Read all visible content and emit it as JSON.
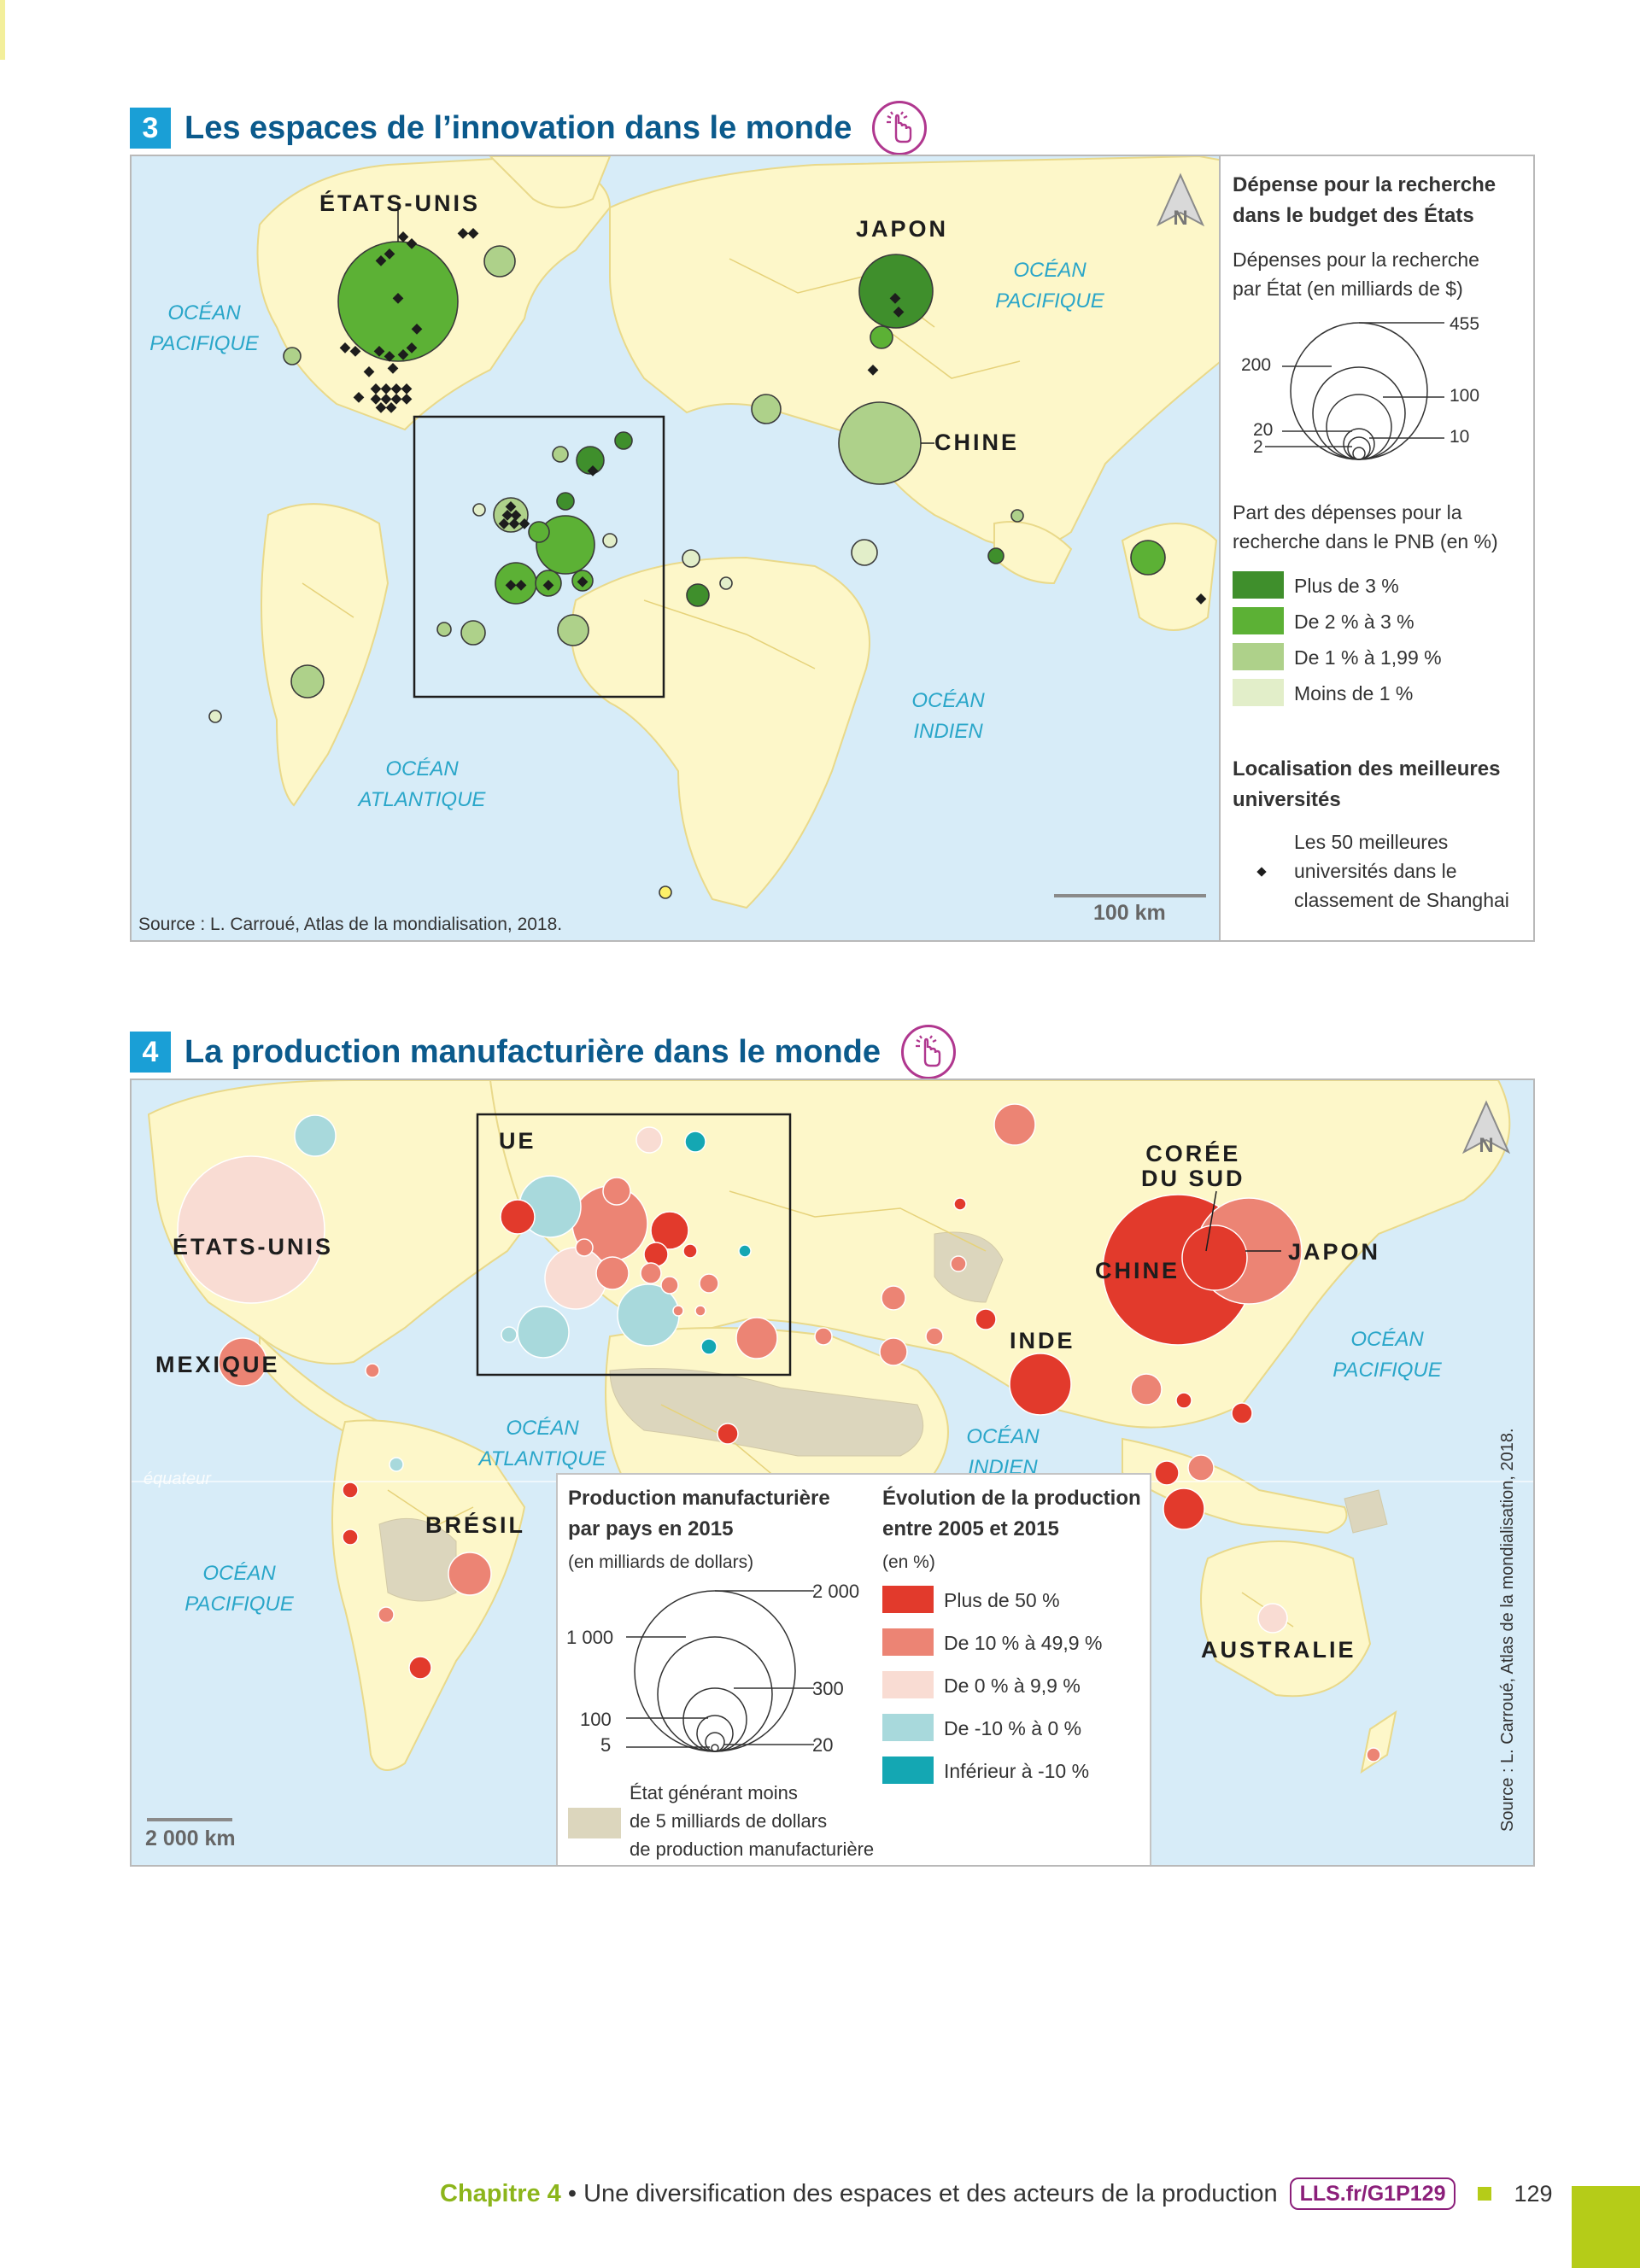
{
  "map3": {
    "number": "3",
    "title": "Les espaces de l’innovation dans le monde",
    "labels": {
      "usa": "ÉTATS-UNIS",
      "japan": "JAPON",
      "china": "CHINE"
    },
    "oceans": {
      "pacific_w": "OCÉAN\nPACIFIQUE",
      "pacific_e": "OCÉAN\nPACIFIQUE",
      "atlantic": "OCÉAN\nATLANTIQUE",
      "indian": "OCÉAN\nINDIEN"
    },
    "north": "N",
    "scale": "100 km",
    "source": "Source : L. Carroué, Atlas de la mondialisation, 2018.",
    "legend": {
      "heading1": "Dépense pour la recherche\ndans le budget des États",
      "subheading1": "Dépenses pour la recherche\npar État (en milliards de $)",
      "circle_values": [
        "455",
        "200",
        "100",
        "20",
        "10",
        "2"
      ],
      "subheading2": "Part des dépenses pour la\nrecherche dans le PNB (en %)",
      "classes": [
        {
          "label": "Plus de 3 %",
          "color": "#3f8f2c"
        },
        {
          "label": "De 2 % à 3 %",
          "color": "#5cb135"
        },
        {
          "label": "De 1 % à 1,99 %",
          "color": "#aed18a"
        },
        {
          "label": "Moins de 1 %",
          "color": "#e2eec9"
        }
      ],
      "heading2": "Localisation des meilleures\nuniversités",
      "universities_label": "Les 50 meilleures\nuniversités dans le\nclassement de Shanghai"
    }
  },
  "map4": {
    "number": "4",
    "title": "La production manufacturière dans le monde",
    "labels": {
      "ue": "UE",
      "usa": "ÉTATS-UNIS",
      "mexico": "MEXIQUE",
      "korea": "CORÉE\nDU SUD",
      "china": "CHINE",
      "japan": "JAPON",
      "india": "INDE",
      "brazil": "BRÉSIL",
      "australia": "AUSTRALIE"
    },
    "oceans": {
      "atlantic": "OCÉAN\nATLANTIQUE",
      "indian": "OCÉAN\nINDIEN",
      "pacific_e": "OCÉAN\nPACIFIQUE",
      "pacific_w": "OCÉAN\nPACIFIQUE"
    },
    "equator": "équateur",
    "north": "N",
    "scale": "2 000 km",
    "source": "Source : L. Carroué, Atlas de la mondialisation, 2018.",
    "legend": {
      "heading1": "Production manufacturière\npar pays en 2015",
      "sub1": "(en milliards de dollars)",
      "circle_values": [
        "2 000",
        "1 000",
        "300",
        "100",
        "5",
        "20"
      ],
      "heading2": "Évolution de la production\nentre 2005 et 2015",
      "sub2": "(en %)",
      "classes": [
        {
          "label": "Plus de 50 %",
          "color": "#e23a2c"
        },
        {
          "label": "De 10 % à 49,9 %",
          "color": "#ec8474"
        },
        {
          "label": "De 0 % à 9,9 %",
          "color": "#f9dcd3"
        },
        {
          "label": "De -10 % à 0 %",
          "color": "#a8d9dc"
        },
        {
          "label": "Inférieur à -10 %",
          "color": "#14a7b3"
        }
      ],
      "low_state_label": "État générant moins\nde 5 milliards de dollars\nde production manufacturière",
      "low_state_color": "#dcd6bd"
    }
  },
  "footer": {
    "chapter": "Chapitre 4",
    "bullet": " • ",
    "text": "Une diversification des espaces et des acteurs de la production",
    "link": "LLS.fr/G1P129",
    "page": "129"
  }
}
